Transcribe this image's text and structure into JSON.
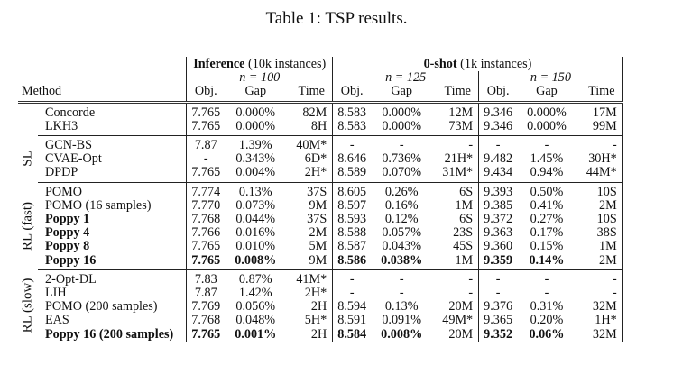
{
  "caption": "Table 1: TSP results.",
  "header": {
    "group1": {
      "bold": "Inference",
      "rest": " (10k instances)",
      "n": "n = 100"
    },
    "group2": {
      "bold": "0-shot",
      "rest": " (1k instances)",
      "n125": "n = 125",
      "n150": "n = 150"
    },
    "method": "Method",
    "cols": [
      "Obj.",
      "Gap",
      "Time",
      "Obj.",
      "Gap",
      "Time",
      "Obj.",
      "Gap",
      "Time"
    ]
  },
  "sections": [
    {
      "label": "",
      "rows": [
        {
          "method": "Concorde",
          "bold": false,
          "values": [
            "7.765",
            "0.000%",
            "82M",
            "8.583",
            "0.000%",
            "12M",
            "9.346",
            "0.000%",
            "17M"
          ],
          "boldmask": [
            0,
            0,
            0,
            0,
            0,
            0,
            0,
            0,
            0
          ]
        },
        {
          "method": "LKH3",
          "bold": false,
          "values": [
            "7.765",
            "0.000%",
            "8H",
            "8.583",
            "0.000%",
            "73M",
            "9.346",
            "0.000%",
            "99M"
          ],
          "boldmask": [
            0,
            0,
            0,
            0,
            0,
            0,
            0,
            0,
            0
          ]
        }
      ]
    },
    {
      "label": "SL",
      "rows": [
        {
          "method": "GCN-BS",
          "bold": false,
          "values": [
            "7.87",
            "1.39%",
            "40M*",
            "-",
            "-",
            "-",
            "-",
            "-",
            "-"
          ],
          "boldmask": [
            0,
            0,
            0,
            0,
            0,
            0,
            0,
            0,
            0
          ]
        },
        {
          "method": "CVAE-Opt",
          "bold": false,
          "values": [
            "-",
            "0.343%",
            "6D*",
            "8.646",
            "0.736%",
            "21H*",
            "9.482",
            "1.45%",
            "30H*"
          ],
          "boldmask": [
            0,
            0,
            0,
            0,
            0,
            0,
            0,
            0,
            0
          ]
        },
        {
          "method": "DPDP",
          "bold": false,
          "values": [
            "7.765",
            "0.004%",
            "2H*",
            "8.589",
            "0.070%",
            "31M*",
            "9.434",
            "0.94%",
            "44M*"
          ],
          "boldmask": [
            0,
            0,
            0,
            0,
            0,
            0,
            0,
            0,
            0
          ]
        }
      ]
    },
    {
      "label": "RL (fast)",
      "rows": [
        {
          "method": "POMO",
          "bold": false,
          "values": [
            "7.774",
            "0.13%",
            "37S",
            "8.605",
            "0.26%",
            "6S",
            "9.393",
            "0.50%",
            "10S"
          ],
          "boldmask": [
            0,
            0,
            0,
            0,
            0,
            0,
            0,
            0,
            0
          ]
        },
        {
          "method": "POMO (16 samples)",
          "bold": false,
          "values": [
            "7.770",
            "0.073%",
            "9M",
            "8.597",
            "0.16%",
            "1M",
            "9.385",
            "0.41%",
            "2M"
          ],
          "boldmask": [
            0,
            0,
            0,
            0,
            0,
            0,
            0,
            0,
            0
          ]
        },
        {
          "method": "Poppy 1",
          "bold": true,
          "values": [
            "7.768",
            "0.044%",
            "37S",
            "8.593",
            "0.12%",
            "6S",
            "9.372",
            "0.27%",
            "10S"
          ],
          "boldmask": [
            0,
            0,
            0,
            0,
            0,
            0,
            0,
            0,
            0
          ]
        },
        {
          "method": "Poppy 4",
          "bold": true,
          "values": [
            "7.766",
            "0.016%",
            "2M",
            "8.588",
            "0.057%",
            "23S",
            "9.363",
            "0.17%",
            "38S"
          ],
          "boldmask": [
            0,
            0,
            0,
            0,
            0,
            0,
            0,
            0,
            0
          ]
        },
        {
          "method": "Poppy 8",
          "bold": true,
          "values": [
            "7.765",
            "0.010%",
            "5M",
            "8.587",
            "0.043%",
            "45S",
            "9.360",
            "0.15%",
            "1M"
          ],
          "boldmask": [
            0,
            0,
            0,
            0,
            0,
            0,
            0,
            0,
            0
          ]
        },
        {
          "method": "Poppy 16",
          "bold": true,
          "values": [
            "7.765",
            "0.008%",
            "9M",
            "8.586",
            "0.038%",
            "1M",
            "9.359",
            "0.14%",
            "2M"
          ],
          "boldmask": [
            1,
            1,
            0,
            1,
            1,
            0,
            1,
            1,
            0
          ]
        }
      ]
    },
    {
      "label": "RL (slow)",
      "rows": [
        {
          "method": "2-Opt-DL",
          "bold": false,
          "values": [
            "7.83",
            "0.87%",
            "41M*",
            "-",
            "-",
            "-",
            "-",
            "-",
            "-"
          ],
          "boldmask": [
            0,
            0,
            0,
            0,
            0,
            0,
            0,
            0,
            0
          ]
        },
        {
          "method": "LIH",
          "bold": false,
          "values": [
            "7.87",
            "1.42%",
            "2H*",
            "-",
            "-",
            "-",
            "-",
            "-",
            "-"
          ],
          "boldmask": [
            0,
            0,
            0,
            0,
            0,
            0,
            0,
            0,
            0
          ]
        },
        {
          "method": "POMO (200 samples)",
          "bold": false,
          "values": [
            "7.769",
            "0.056%",
            "2H",
            "8.594",
            "0.13%",
            "20M",
            "9.376",
            "0.31%",
            "32M"
          ],
          "boldmask": [
            0,
            0,
            0,
            0,
            0,
            0,
            0,
            0,
            0
          ]
        },
        {
          "method": "EAS",
          "bold": false,
          "values": [
            "7.768",
            "0.048%",
            "5H*",
            "8.591",
            "0.091%",
            "49M*",
            "9.365",
            "0.20%",
            "1H*"
          ],
          "boldmask": [
            0,
            0,
            0,
            0,
            0,
            0,
            0,
            0,
            0
          ]
        },
        {
          "method": "Poppy 16 (200 samples)",
          "bold": true,
          "values": [
            "7.765",
            "0.001%",
            "2H",
            "8.584",
            "0.008%",
            "20M",
            "9.352",
            "0.06%",
            "32M"
          ],
          "boldmask": [
            1,
            1,
            0,
            1,
            1,
            0,
            1,
            1,
            0
          ]
        }
      ]
    }
  ]
}
